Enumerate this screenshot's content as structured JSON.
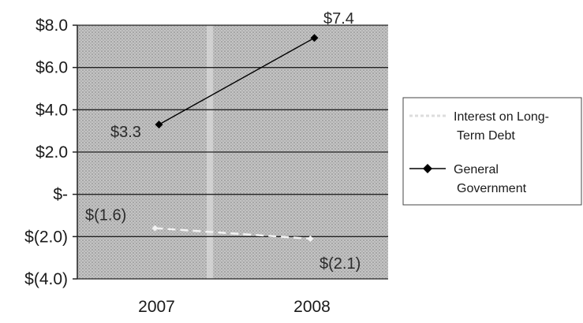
{
  "chart_data": {
    "type": "line",
    "categories": [
      "2007",
      "2008"
    ],
    "series": [
      {
        "name": "Interest on Long-Term Debt",
        "values": [
          -1.6,
          -2.1
        ],
        "labels": [
          "$(1.6)",
          "$(2.1)"
        ],
        "color": "#f2f2f2"
      },
      {
        "name": "General Government",
        "values": [
          3.3,
          7.4
        ],
        "labels": [
          "$3.3",
          "$7.4"
        ],
        "color": "#000000",
        "marker": "diamond"
      }
    ],
    "ylim": [
      -4.0,
      8.0
    ],
    "yticks": [
      {
        "value": 8.0,
        "label": "$8.0"
      },
      {
        "value": 6.0,
        "label": "$6.0"
      },
      {
        "value": 4.0,
        "label": "$4.0"
      },
      {
        "value": 2.0,
        "label": "$2.0"
      },
      {
        "value": 0.0,
        "label": "$-"
      },
      {
        "value": -2.0,
        "label": "$(2.0)"
      },
      {
        "value": -4.0,
        "label": "$(4.0)"
      }
    ],
    "grid": true,
    "legend": {
      "position": "right",
      "entries": [
        {
          "line1": "Interest on Long-",
          "line2": "Term Debt"
        },
        {
          "line1": "General",
          "line2": "Government"
        }
      ]
    },
    "background": "hatched-gray"
  }
}
